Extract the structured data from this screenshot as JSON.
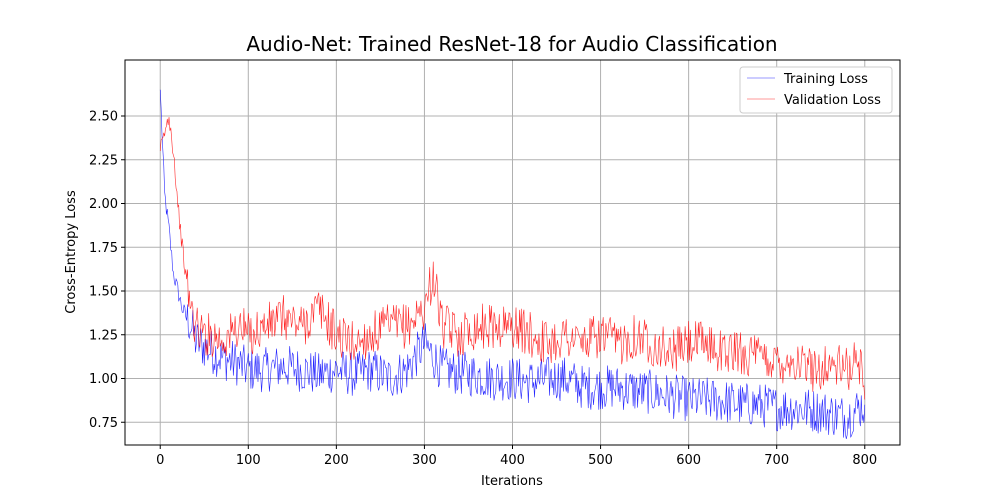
{
  "chart_data": {
    "type": "line",
    "title": "Audio-Net: Trained ResNet-18 for Audio Classification",
    "xlabel": "Iterations",
    "ylabel": "Cross-Entropy Loss",
    "xlim": [
      -40,
      840
    ],
    "ylim": [
      0.62,
      2.82
    ],
    "xticks": [
      0,
      100,
      200,
      300,
      400,
      500,
      600,
      700,
      800
    ],
    "yticks": [
      0.75,
      1.0,
      1.25,
      1.5,
      1.75,
      2.0,
      2.25,
      2.5
    ],
    "xtick_labels": [
      "0",
      "100",
      "200",
      "300",
      "400",
      "500",
      "600",
      "700",
      "800"
    ],
    "ytick_labels": [
      "0.75",
      "1.00",
      "1.25",
      "1.50",
      "1.75",
      "2.00",
      "2.25",
      "2.50"
    ],
    "grid": true,
    "legend_position": "top-right",
    "series": [
      {
        "name": "Training Loss",
        "color": "#0000ff",
        "x": [
          0,
          5,
          10,
          15,
          20,
          25,
          30,
          35,
          40,
          50,
          60,
          70,
          80,
          90,
          100,
          120,
          140,
          160,
          180,
          200,
          220,
          240,
          260,
          280,
          300,
          320,
          340,
          360,
          380,
          400,
          420,
          440,
          460,
          480,
          500,
          520,
          540,
          560,
          580,
          600,
          620,
          640,
          660,
          680,
          700,
          720,
          740,
          760,
          780,
          795,
          800
        ],
        "y": [
          2.65,
          2.05,
          1.85,
          1.6,
          1.5,
          1.4,
          1.35,
          1.3,
          1.22,
          1.18,
          1.15,
          1.12,
          1.1,
          1.08,
          1.05,
          1.05,
          1.07,
          1.05,
          1.02,
          1.05,
          1.02,
          1.05,
          1.0,
          1.05,
          1.2,
          1.05,
          1.03,
          1.02,
          1.0,
          1.0,
          0.98,
          1.0,
          1.0,
          0.95,
          0.95,
          0.95,
          0.93,
          0.92,
          0.9,
          0.88,
          0.88,
          0.87,
          0.85,
          0.85,
          0.83,
          0.83,
          0.82,
          0.8,
          0.78,
          0.84,
          0.85
        ]
      },
      {
        "name": "Validation Loss",
        "color": "#ff0000",
        "x": [
          0,
          5,
          10,
          15,
          20,
          25,
          30,
          35,
          40,
          50,
          60,
          70,
          80,
          90,
          100,
          120,
          140,
          160,
          180,
          200,
          220,
          240,
          260,
          280,
          300,
          310,
          320,
          340,
          360,
          380,
          400,
          420,
          440,
          460,
          480,
          500,
          520,
          540,
          560,
          580,
          600,
          620,
          640,
          660,
          680,
          700,
          720,
          740,
          760,
          780,
          795,
          800
        ],
        "y": [
          2.3,
          2.4,
          2.5,
          2.3,
          2.0,
          1.75,
          1.55,
          1.4,
          1.3,
          1.25,
          1.25,
          1.22,
          1.25,
          1.3,
          1.25,
          1.3,
          1.35,
          1.3,
          1.4,
          1.25,
          1.2,
          1.25,
          1.3,
          1.3,
          1.4,
          1.6,
          1.3,
          1.25,
          1.3,
          1.3,
          1.3,
          1.25,
          1.2,
          1.25,
          1.2,
          1.25,
          1.2,
          1.25,
          1.2,
          1.15,
          1.2,
          1.2,
          1.15,
          1.15,
          1.12,
          1.1,
          1.1,
          1.05,
          1.08,
          1.05,
          1.1,
          0.88
        ]
      }
    ]
  }
}
